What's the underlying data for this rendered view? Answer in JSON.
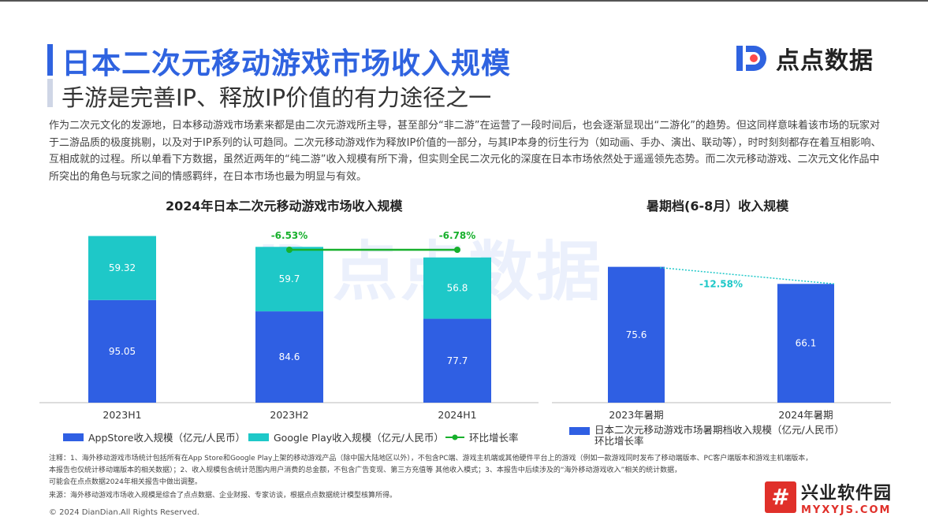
{
  "header": {
    "title": "日本二次元移动游戏市场收入规模",
    "subtitle": "手游是完善IP、释放IP价值的有力途径之一",
    "logo_text": "点点数据",
    "logo_icon": "dd-logo-icon"
  },
  "intro": "作为二次元文化的发源地，日本移动游戏市场素来都是由二次元游戏所主导，甚至部分“非二游”在运营了一段时间后，也会逐渐显现出“二游化”的趋势。但这同样意味着该市场的玩家对于二游品质的极度挑剔，以及对于IP系列的认可趋同。二次元移动游戏作为释放IP价值的一部分，与其IP本身的衍生行为（如动画、手办、演出、联动等），时时刻刻都存在着互相影响、互相成就的过程。所以单看下方数据，虽然近两年的“纯二游”收入规模有所下滑，但实则全民二次元化的深度在日本市场依然处于遥遥领先态势。而二次元移动游戏、二次元文化作品中所突出的角色与玩家之间的情感羁绊，在日本市场也最为明显与有效。",
  "chart_data": [
    {
      "type": "bar",
      "stacked": true,
      "title": "2024年日本二次元移动游戏市场收入规模",
      "categories": [
        "2023H1",
        "2023H2",
        "2024H1"
      ],
      "series": [
        {
          "name": "AppStore收入规模（亿元/人民币）",
          "values": [
            95.05,
            84.6,
            77.7
          ],
          "color": "#2f5fe3"
        },
        {
          "name": "Google Play收入规模（亿元/人民币）",
          "values": [
            59.32,
            59.7,
            56.8
          ],
          "color": "#1ec8c8"
        }
      ],
      "growth": {
        "name": "环比增长率",
        "values": [
          null,
          "-6.53%",
          "-6.78%"
        ],
        "color": "#17b02c"
      },
      "ylim": [
        0,
        160
      ]
    },
    {
      "type": "bar",
      "title": "暑期档(6-8月）收入规模",
      "categories": [
        "2023年暑期",
        "2024年暑期"
      ],
      "series": [
        {
          "name": "日本二次元移动游戏市场暑期档收入规模（亿元/人民币）",
          "values": [
            75.6,
            66.1
          ],
          "color": "#2f5fe3"
        }
      ],
      "growth": {
        "name": "环比增长率",
        "values": [
          null,
          "-12.58%"
        ],
        "color": "#1ec8c8"
      },
      "ylim": [
        0,
        80
      ]
    }
  ],
  "legend_left": {
    "appstore": "AppStore收入规模（亿元/人民币）",
    "googleplay": "Google Play收入规模（亿元/人民币）",
    "growth": "环比增长率"
  },
  "legend_right": {
    "line1": "日本二次元移动游戏市场暑期档收入规模（亿元/人民币）",
    "line2": "环比增长率"
  },
  "notes": {
    "line1": "注释：1、海外移动游戏市场统计包括所有在App Store和Google Play上架的移动游戏产品（除中国大陆地区以外），不包含PC端、游戏主机端或其他硬件平台上的游戏（例如一款游戏同时发布了移动端版本、PC客户端版本和游戏主机端版本，",
    "line2": "本报告也仅统计移动端版本的相关数据）；2、收入规模包含统计范围内用户消费的总金额，不包含广告变现、第三方充值等 其他收入模式；3、本报告中后续涉及的“海外移动游戏收入”相关的统计数据，",
    "line3": "可能会在点点数据2024年相关报告中做出调整。",
    "source": "来源：海外移动游戏市场收入规模是综合了点点数据、企业财报、专家访谈，根据点点数据统计模型核算所得。"
  },
  "copyright": "© 2024 DianDian.All Rights Reserved.",
  "watermark": {
    "name": "兴业软件园",
    "url": "MYXYJS.COM",
    "icon": "#"
  }
}
